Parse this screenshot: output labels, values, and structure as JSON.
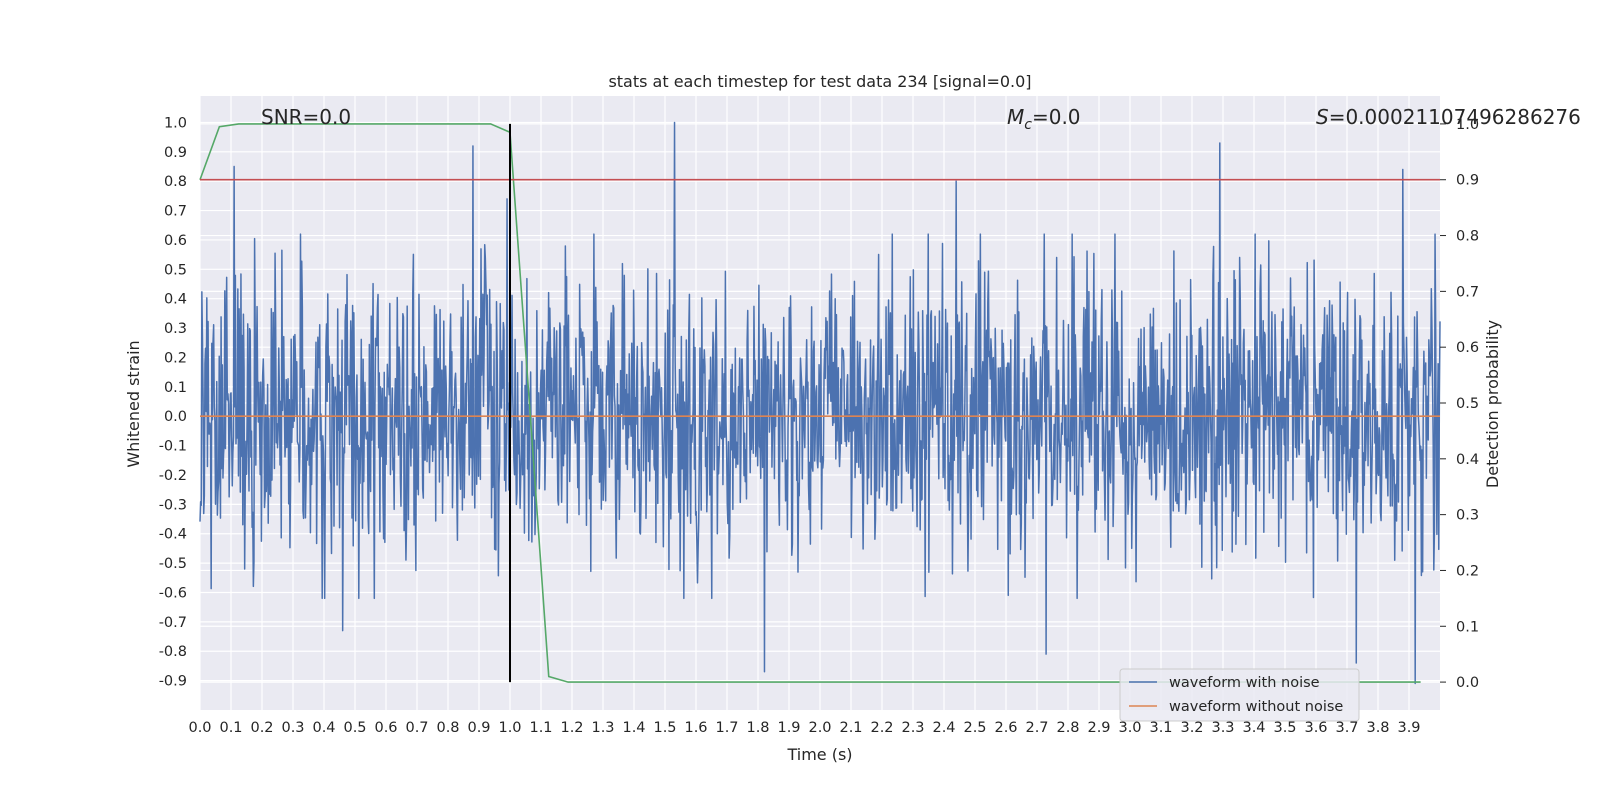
{
  "chart_data": {
    "type": "line",
    "title": "stats at each timestep for test data 234 [signal=0.0]",
    "xlabel": "Time (s)",
    "ylabel": "Whitened strain",
    "y2label": "Detection probability",
    "xlim": [
      0.0,
      4.0
    ],
    "ylim": [
      -1.0,
      1.09
    ],
    "y2lim": [
      -0.05,
      1.05
    ],
    "grid": true,
    "xticks": [
      "0.0",
      "0.1",
      "0.2",
      "0.3",
      "0.4",
      "0.5",
      "0.6",
      "0.7",
      "0.8",
      "0.9",
      "1.0",
      "1.1",
      "1.2",
      "1.3",
      "1.4",
      "1.5",
      "1.6",
      "1.7",
      "1.8",
      "1.9",
      "2.0",
      "2.1",
      "2.2",
      "2.3",
      "2.4",
      "2.5",
      "2.6",
      "2.7",
      "2.8",
      "2.9",
      "3.0",
      "3.1",
      "3.2",
      "3.3",
      "3.4",
      "3.5",
      "3.6",
      "3.7",
      "3.8",
      "3.9"
    ],
    "yticks": [
      "1.0",
      "0.9",
      "0.8",
      "0.7",
      "0.6",
      "0.5",
      "0.4",
      "0.3",
      "0.2",
      "0.1",
      "0.0",
      "-0.1",
      "-0.2",
      "-0.3",
      "-0.4",
      "-0.5",
      "-0.6",
      "-0.7",
      "-0.8",
      "-0.9"
    ],
    "y2ticks": [
      "1.0",
      "0.9",
      "0.8",
      "0.7",
      "0.6",
      "0.5",
      "0.4",
      "0.3",
      "0.2",
      "0.1",
      "0.0"
    ],
    "annotations": {
      "snr": "SNR=0.0",
      "mc_symbol": "M",
      "mc_sub": "c",
      "mc_value": "=0.0",
      "s_symbol": "S",
      "s_value": "=0.00021107496286276"
    },
    "legend": {
      "position": "lower-right",
      "entries": [
        "waveform with noise",
        "waveform without noise"
      ]
    },
    "series": [
      {
        "name": "waveform with noise",
        "color": "#4c72b0",
        "axis": "left",
        "kind": "noise",
        "noise": {
          "n": 2000,
          "seed": 234,
          "sigma": 0.24,
          "peaks": [
            {
              "x": 0.11,
              "y": 0.85
            },
            {
              "x": 0.88,
              "y": 0.92
            },
            {
              "x": 1.53,
              "y": 1.0
            },
            {
              "x": 3.29,
              "y": 0.93
            },
            {
              "x": 3.88,
              "y": 0.84
            },
            {
              "x": 1.82,
              "y": -0.87
            },
            {
              "x": 3.73,
              "y": -0.84
            },
            {
              "x": 3.92,
              "y": -0.91
            },
            {
              "x": 0.46,
              "y": -0.73
            },
            {
              "x": 2.73,
              "y": -0.81
            },
            {
              "x": 0.99,
              "y": 0.74
            },
            {
              "x": 2.44,
              "y": 0.8
            }
          ]
        }
      },
      {
        "name": "waveform without noise",
        "color": "#dd8452",
        "axis": "left",
        "x": [
          0.0,
          4.0
        ],
        "y": [
          0.0,
          0.0
        ]
      },
      {
        "name": "detection probability",
        "color": "#55a868",
        "axis": "right",
        "x": [
          0.0,
          0.0625,
          0.125,
          0.1875,
          0.25,
          0.3125,
          0.375,
          0.4375,
          0.5,
          0.5625,
          0.625,
          0.6875,
          0.75,
          0.8125,
          0.875,
          0.9375,
          1.0,
          1.0625,
          1.125,
          1.1875,
          1.25,
          1.5,
          2.0,
          2.5,
          3.0,
          3.5,
          3.9375
        ],
        "y": [
          0.9,
          0.995,
          1.0,
          1.0,
          1.0,
          1.0,
          1.0,
          1.0,
          1.0,
          1.0,
          1.0,
          1.0,
          1.0,
          1.0,
          1.0,
          1.0,
          0.985,
          0.5,
          0.01,
          0.0,
          0.0,
          0.0,
          0.0,
          0.0,
          0.0,
          0.0,
          0.0
        ]
      },
      {
        "name": "threshold",
        "color": "#c44e52",
        "axis": "right",
        "x": [
          0.0,
          4.0
        ],
        "y": [
          0.9,
          0.9
        ]
      },
      {
        "name": "marker",
        "color": "#000000",
        "axis": "right",
        "x": [
          1.0,
          1.0
        ],
        "y": [
          0.0,
          1.0
        ]
      }
    ]
  }
}
